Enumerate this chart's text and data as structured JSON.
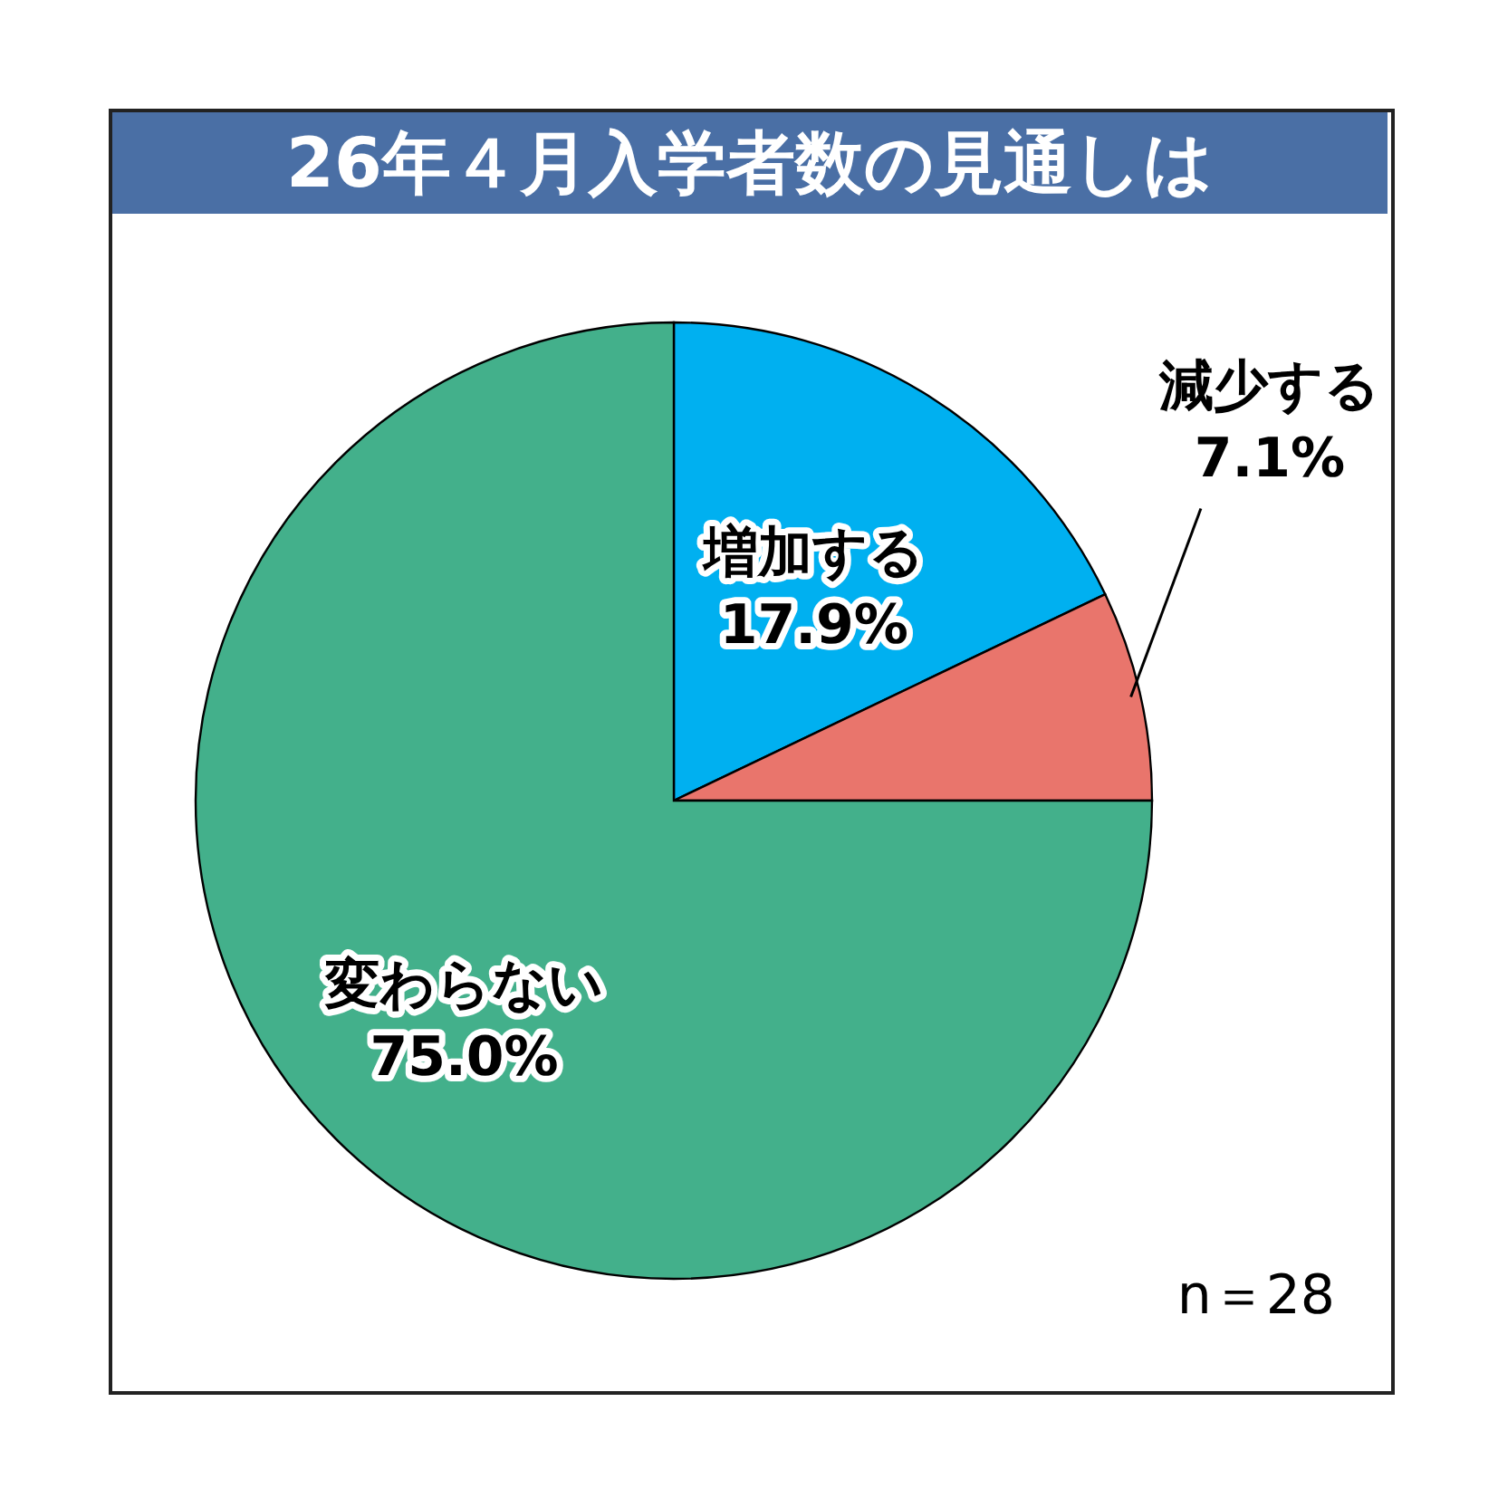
{
  "chart_data": {
    "type": "pie",
    "title": "26年４月入学者数の見通しは",
    "categories": [
      "増加する",
      "減少する",
      "変わらない"
    ],
    "values": [
      17.9,
      7.1,
      75.0
    ],
    "colors": [
      "#00b0f0",
      "#e9756c",
      "#43b08b"
    ],
    "value_labels": [
      "17.9%",
      "7.1%",
      "75.0%"
    ],
    "annotations": [
      "n＝28"
    ]
  }
}
